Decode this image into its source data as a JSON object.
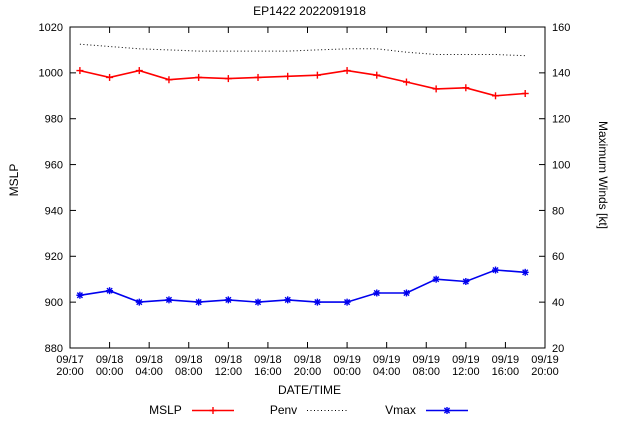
{
  "figure": {
    "title": "EP1422 2022091918",
    "x_axis_label": "DATE/TIME",
    "y_left_label": "MSLP",
    "y_right_label": "Maximum Winds [kt]"
  },
  "legend": {
    "items": [
      {
        "label": "MSLP"
      },
      {
        "label": "Penv"
      },
      {
        "label": "Vmax"
      }
    ]
  },
  "colors": {
    "mslp_line": "#ff0000",
    "penv_line": "#000000",
    "vmax_line": "#0000ee",
    "axis": "#000000",
    "background": "#ffffff"
  },
  "chart_data": {
    "type": "line",
    "title": "EP1422 2022091918",
    "xlabel": "DATE/TIME",
    "ylabel_left": "MSLP",
    "ylabel_right": "Maximum Winds [kt]",
    "ylim_left": [
      880,
      1020
    ],
    "ylim_right": [
      20,
      160
    ],
    "y_ticks_left": [
      880,
      900,
      920,
      940,
      960,
      980,
      1000,
      1020
    ],
    "y_ticks_right": [
      20,
      40,
      60,
      80,
      100,
      120,
      140,
      160
    ],
    "x_range_hours": [
      0,
      48
    ],
    "x_tick_hours": [
      0,
      4,
      8,
      12,
      16,
      20,
      24,
      28,
      32,
      36,
      40,
      44,
      48
    ],
    "x_tick_labels": [
      [
        "09/17",
        "20:00"
      ],
      [
        "09/18",
        "00:00"
      ],
      [
        "09/18",
        "04:00"
      ],
      [
        "09/18",
        "08:00"
      ],
      [
        "09/18",
        "12:00"
      ],
      [
        "09/18",
        "16:00"
      ],
      [
        "09/18",
        "20:00"
      ],
      [
        "09/19",
        "00:00"
      ],
      [
        "09/19",
        "04:00"
      ],
      [
        "09/19",
        "08:00"
      ],
      [
        "09/19",
        "12:00"
      ],
      [
        "09/19",
        "16:00"
      ],
      [
        "09/19",
        "20:00"
      ]
    ],
    "x_hours": [
      1,
      4,
      7,
      10,
      13,
      16,
      19,
      22,
      25,
      28,
      31,
      34,
      37,
      40,
      43,
      46
    ],
    "x_times": [
      "09/17 21:00",
      "09/18 00:00",
      "09/18 03:00",
      "09/18 06:00",
      "09/18 09:00",
      "09/18 12:00",
      "09/18 15:00",
      "09/18 18:00",
      "09/18 21:00",
      "09/19 00:00",
      "09/19 03:00",
      "09/19 06:00",
      "09/19 09:00",
      "09/19 12:00",
      "09/19 15:00",
      "09/19 18:00"
    ],
    "series": [
      {
        "name": "MSLP",
        "axis": "left",
        "color": "#ff0000",
        "line": "solid",
        "marker": "plus",
        "values": [
          1001,
          998,
          1001,
          997,
          998,
          997.5,
          998,
          998.5,
          999,
          1001,
          999,
          996,
          993,
          993.5,
          990,
          991
        ]
      },
      {
        "name": "Penv",
        "axis": "left",
        "color": "#000000",
        "line": "dotted",
        "marker": "none",
        "values": [
          1012.5,
          1011.5,
          1010.5,
          1010,
          1009.5,
          1009.5,
          1009.5,
          1009.5,
          1010,
          1010.5,
          1010.5,
          1009,
          1008,
          1008,
          1008,
          1007.5
        ]
      },
      {
        "name": "Vmax",
        "axis": "right",
        "color": "#0000ee",
        "line": "solid",
        "marker": "asterisk",
        "values": [
          43,
          45,
          40,
          41,
          40,
          41,
          40,
          41,
          40,
          40,
          44,
          44,
          50,
          49,
          54,
          53
        ]
      }
    ],
    "legend_position": "bottom",
    "grid": false
  }
}
